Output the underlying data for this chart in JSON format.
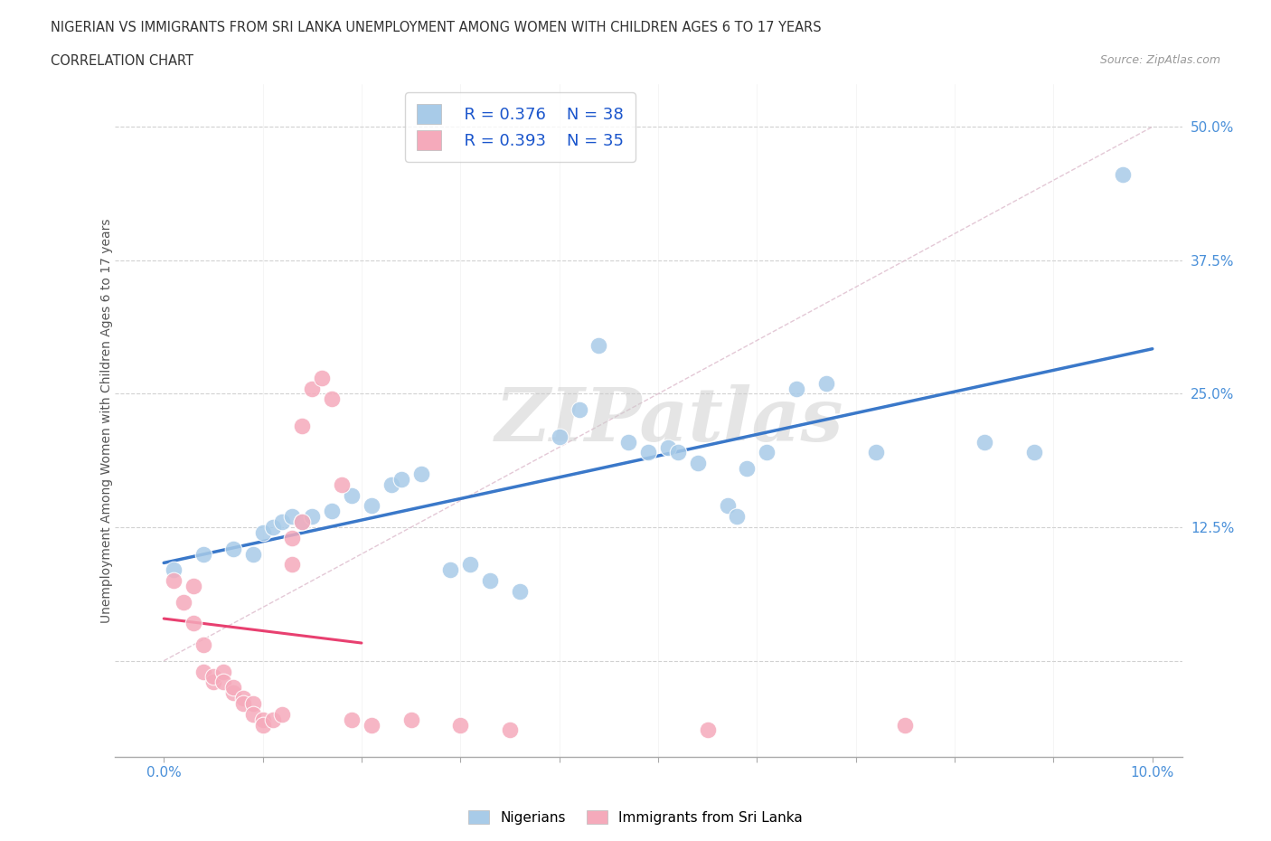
{
  "title_line1": "NIGERIAN VS IMMIGRANTS FROM SRI LANKA UNEMPLOYMENT AMONG WOMEN WITH CHILDREN AGES 6 TO 17 YEARS",
  "title_line2": "CORRELATION CHART",
  "source": "Source: ZipAtlas.com",
  "ylabel": "Unemployment Among Women with Children Ages 6 to 17 years",
  "watermark": "ZIPatlas",
  "legend_R_blue": "R = 0.376",
  "legend_N_blue": "N = 38",
  "legend_R_pink": "R = 0.393",
  "legend_N_pink": "N = 35",
  "blue_color": "#A8CBE8",
  "pink_color": "#F5AABB",
  "blue_line_color": "#3A78C9",
  "pink_line_color": "#E84070",
  "diag_line_color": "#DDBBCC",
  "title_color": "#333333",
  "source_color": "#999999",
  "axis_tick_color": "#4A90D9",
  "grid_color": "#CCCCCC",
  "legend_text_color": "#1A55CC",
  "blue_scatter": [
    [
      0.001,
      0.085
    ],
    [
      0.004,
      0.1
    ],
    [
      0.007,
      0.105
    ],
    [
      0.009,
      0.1
    ],
    [
      0.01,
      0.12
    ],
    [
      0.011,
      0.125
    ],
    [
      0.012,
      0.13
    ],
    [
      0.013,
      0.135
    ],
    [
      0.014,
      0.13
    ],
    [
      0.015,
      0.135
    ],
    [
      0.017,
      0.14
    ],
    [
      0.019,
      0.155
    ],
    [
      0.021,
      0.145
    ],
    [
      0.023,
      0.165
    ],
    [
      0.024,
      0.17
    ],
    [
      0.026,
      0.175
    ],
    [
      0.029,
      0.085
    ],
    [
      0.031,
      0.09
    ],
    [
      0.033,
      0.075
    ],
    [
      0.036,
      0.065
    ],
    [
      0.04,
      0.21
    ],
    [
      0.042,
      0.235
    ],
    [
      0.044,
      0.295
    ],
    [
      0.047,
      0.205
    ],
    [
      0.049,
      0.195
    ],
    [
      0.051,
      0.2
    ],
    [
      0.054,
      0.185
    ],
    [
      0.057,
      0.145
    ],
    [
      0.059,
      0.18
    ],
    [
      0.061,
      0.195
    ],
    [
      0.064,
      0.255
    ],
    [
      0.067,
      0.26
    ],
    [
      0.072,
      0.195
    ],
    [
      0.083,
      0.205
    ],
    [
      0.088,
      0.195
    ],
    [
      0.058,
      0.135
    ],
    [
      0.052,
      0.195
    ],
    [
      0.097,
      0.455
    ]
  ],
  "pink_scatter": [
    [
      0.001,
      0.075
    ],
    [
      0.002,
      0.055
    ],
    [
      0.003,
      0.07
    ],
    [
      0.003,
      0.035
    ],
    [
      0.004,
      0.015
    ],
    [
      0.004,
      -0.01
    ],
    [
      0.005,
      -0.02
    ],
    [
      0.005,
      -0.015
    ],
    [
      0.006,
      -0.01
    ],
    [
      0.006,
      -0.02
    ],
    [
      0.007,
      -0.03
    ],
    [
      0.007,
      -0.025
    ],
    [
      0.008,
      -0.035
    ],
    [
      0.008,
      -0.04
    ],
    [
      0.009,
      -0.04
    ],
    [
      0.009,
      -0.05
    ],
    [
      0.01,
      -0.055
    ],
    [
      0.01,
      -0.06
    ],
    [
      0.011,
      -0.055
    ],
    [
      0.012,
      -0.05
    ],
    [
      0.013,
      0.115
    ],
    [
      0.013,
      0.09
    ],
    [
      0.014,
      0.13
    ],
    [
      0.014,
      0.22
    ],
    [
      0.015,
      0.255
    ],
    [
      0.016,
      0.265
    ],
    [
      0.017,
      0.245
    ],
    [
      0.018,
      0.165
    ],
    [
      0.019,
      -0.055
    ],
    [
      0.021,
      -0.06
    ],
    [
      0.025,
      -0.055
    ],
    [
      0.03,
      -0.06
    ],
    [
      0.035,
      -0.065
    ],
    [
      0.055,
      -0.065
    ],
    [
      0.075,
      -0.06
    ]
  ],
  "xlim": [
    -0.005,
    0.103
  ],
  "ylim": [
    -0.09,
    0.54
  ],
  "xtick_positions": [
    0.0,
    0.01,
    0.02,
    0.03,
    0.04,
    0.05,
    0.06,
    0.07,
    0.08,
    0.09,
    0.1
  ],
  "ytick_positions": [
    0.0,
    0.125,
    0.25,
    0.375,
    0.5
  ],
  "ytick_labels": [
    "",
    "12.5%",
    "25.0%",
    "37.5%",
    "50.0%"
  ],
  "figsize": [
    14.06,
    9.3
  ],
  "dpi": 100
}
